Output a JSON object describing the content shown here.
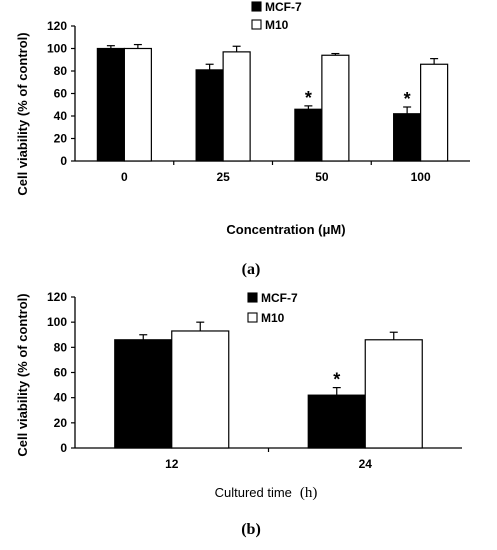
{
  "chart_data": [
    {
      "type": "bar",
      "panel_label": "(a)",
      "categories": [
        "0",
        "25",
        "50",
        "100"
      ],
      "series": [
        {
          "name": "MCF-7",
          "color": "#000000",
          "values": [
            100,
            81,
            46,
            42
          ],
          "errors": [
            2.5,
            5,
            3,
            6
          ]
        },
        {
          "name": "M10",
          "color": "#ffffff",
          "values": [
            100,
            97,
            94,
            86
          ],
          "errors": [
            3.5,
            5,
            1.5,
            5
          ]
        }
      ],
      "significance": [
        {
          "category": "50",
          "series": "MCF-7",
          "mark": "*"
        },
        {
          "category": "100",
          "series": "MCF-7",
          "mark": "*"
        }
      ],
      "xlabel": "Concentration (μM)",
      "ylabel": "Cell viability (% of control)",
      "ylim": [
        0,
        120
      ],
      "yticks": [
        0,
        20,
        40,
        60,
        80,
        100,
        120
      ],
      "legend_position": "top-center",
      "grid": false
    },
    {
      "type": "bar",
      "panel_label": "(b)",
      "categories": [
        "12",
        "24"
      ],
      "series": [
        {
          "name": "MCF-7",
          "color": "#000000",
          "values": [
            86,
            42
          ],
          "errors": [
            4,
            6
          ]
        },
        {
          "name": "M10",
          "color": "#ffffff",
          "values": [
            93,
            86
          ],
          "errors": [
            7,
            6
          ]
        }
      ],
      "significance": [
        {
          "category": "24",
          "series": "MCF-7",
          "mark": "*"
        }
      ],
      "xlabel_main": "Cultured time",
      "xlabel_unit": "(h)",
      "ylabel": "Cell viability (% of control)",
      "ylim": [
        0,
        120
      ],
      "yticks": [
        0,
        20,
        40,
        60,
        80,
        100,
        120
      ],
      "legend_position": "top-center",
      "grid": false
    }
  ]
}
